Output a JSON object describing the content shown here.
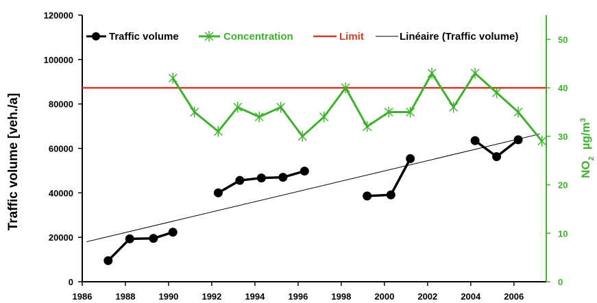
{
  "chart_data": {
    "type": "line",
    "title": "",
    "xlabel": "",
    "ylabel": "Traffic volume  [veh./a]",
    "y2label_prefix": "NO",
    "y2label_sub": "2",
    "y2label_units": "µg/m",
    "y2label_sup": "3",
    "xlim": [
      1986,
      2007.5
    ],
    "ylim": [
      0,
      120000
    ],
    "y2lim": [
      0,
      55
    ],
    "x_ticks": [
      "1986",
      "1988",
      "1990",
      "1992",
      "1994",
      "1996",
      "1998",
      "2000",
      "2002",
      "2004",
      "2006"
    ],
    "y_ticks": [
      "0",
      "20000",
      "40000",
      "60000",
      "80000",
      "100000",
      "120000"
    ],
    "y2_ticks": [
      "0",
      "10",
      "20",
      "30",
      "40",
      "50"
    ],
    "legend_position": "top",
    "colors": {
      "traffic": "#000000",
      "concentration": "#3cb22b",
      "limit": "#d23a2a",
      "trend": "#000000",
      "right_axis": "#3cb22b"
    },
    "series": [
      {
        "name": "Traffic volume",
        "axis": "left",
        "segments": [
          [
            [
              1987.2,
              9500
            ],
            [
              1988.2,
              19300
            ],
            [
              1989.3,
              19500
            ],
            [
              1990.2,
              22300
            ]
          ],
          [
            [
              1992.3,
              40000
            ],
            [
              1993.3,
              45600
            ],
            [
              1994.3,
              46700
            ],
            [
              1995.3,
              47000
            ],
            [
              1996.3,
              49800
            ]
          ],
          [
            [
              1999.2,
              38600
            ],
            [
              2000.3,
              39100
            ],
            [
              2001.2,
              55400
            ]
          ],
          [
            [
              2004.2,
              63500
            ],
            [
              2005.2,
              56300
            ],
            [
              2006.2,
              63900
            ]
          ]
        ]
      },
      {
        "name": "Concentration",
        "axis": "right",
        "points": [
          [
            1990.2,
            42
          ],
          [
            1991.2,
            35
          ],
          [
            1992.3,
            31
          ],
          [
            1993.2,
            36
          ],
          [
            1994.2,
            34
          ],
          [
            1995.2,
            36
          ],
          [
            1996.2,
            30
          ],
          [
            1997.2,
            34
          ],
          [
            1998.2,
            40
          ],
          [
            1999.2,
            32
          ],
          [
            2000.2,
            35
          ],
          [
            2001.2,
            35
          ],
          [
            2002.2,
            43
          ],
          [
            2003.2,
            36
          ],
          [
            2004.2,
            43
          ],
          [
            2005.2,
            39
          ],
          [
            2006.2,
            35
          ],
          [
            2007.3,
            29
          ]
        ]
      },
      {
        "name": "Limit",
        "axis": "right",
        "value": 40
      },
      {
        "name": "Linéaire (Traffic volume)",
        "axis": "left",
        "points": [
          [
            1986.2,
            18000
          ],
          [
            2007.2,
            66500
          ]
        ]
      }
    ]
  }
}
